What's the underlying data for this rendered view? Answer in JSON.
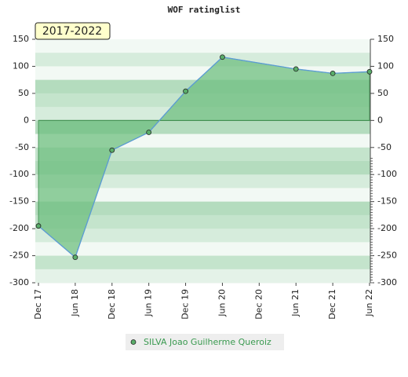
{
  "chart_data": {
    "type": "area",
    "title": "WOF ratinglist",
    "period": "2017-2022",
    "xticks": [
      {
        "value": 0,
        "label": "Dec 17"
      },
      {
        "value": 1,
        "label": "Jun 18"
      },
      {
        "value": 2,
        "label": "Dec 18"
      },
      {
        "value": 3,
        "label": "Jun 19"
      },
      {
        "value": 4,
        "label": "Dec 19"
      },
      {
        "value": 5,
        "label": "Jun 20"
      },
      {
        "value": 6,
        "label": "Dec 20"
      },
      {
        "value": 7,
        "label": "Jun 21"
      },
      {
        "value": 8,
        "label": "Dec 21"
      },
      {
        "value": 9,
        "label": "Jun 22"
      }
    ],
    "xlim": [
      0,
      9
    ],
    "series": [
      {
        "name": "SILVA Joao Guilherme Queroiz",
        "color": "#5b9bd5",
        "fill": "#6fbf80",
        "marker": "#5aae6a",
        "x": [
          0,
          1,
          2,
          3,
          4,
          5,
          7,
          8,
          9
        ],
        "values": [
          -195,
          -253,
          -55,
          -22,
          54,
          117,
          95,
          87,
          90
        ]
      }
    ],
    "ylim": [
      -300,
      150
    ],
    "yticks": [
      -300,
      -250,
      -200,
      -150,
      -100,
      -50,
      0,
      50,
      100,
      150
    ],
    "grid": true
  }
}
